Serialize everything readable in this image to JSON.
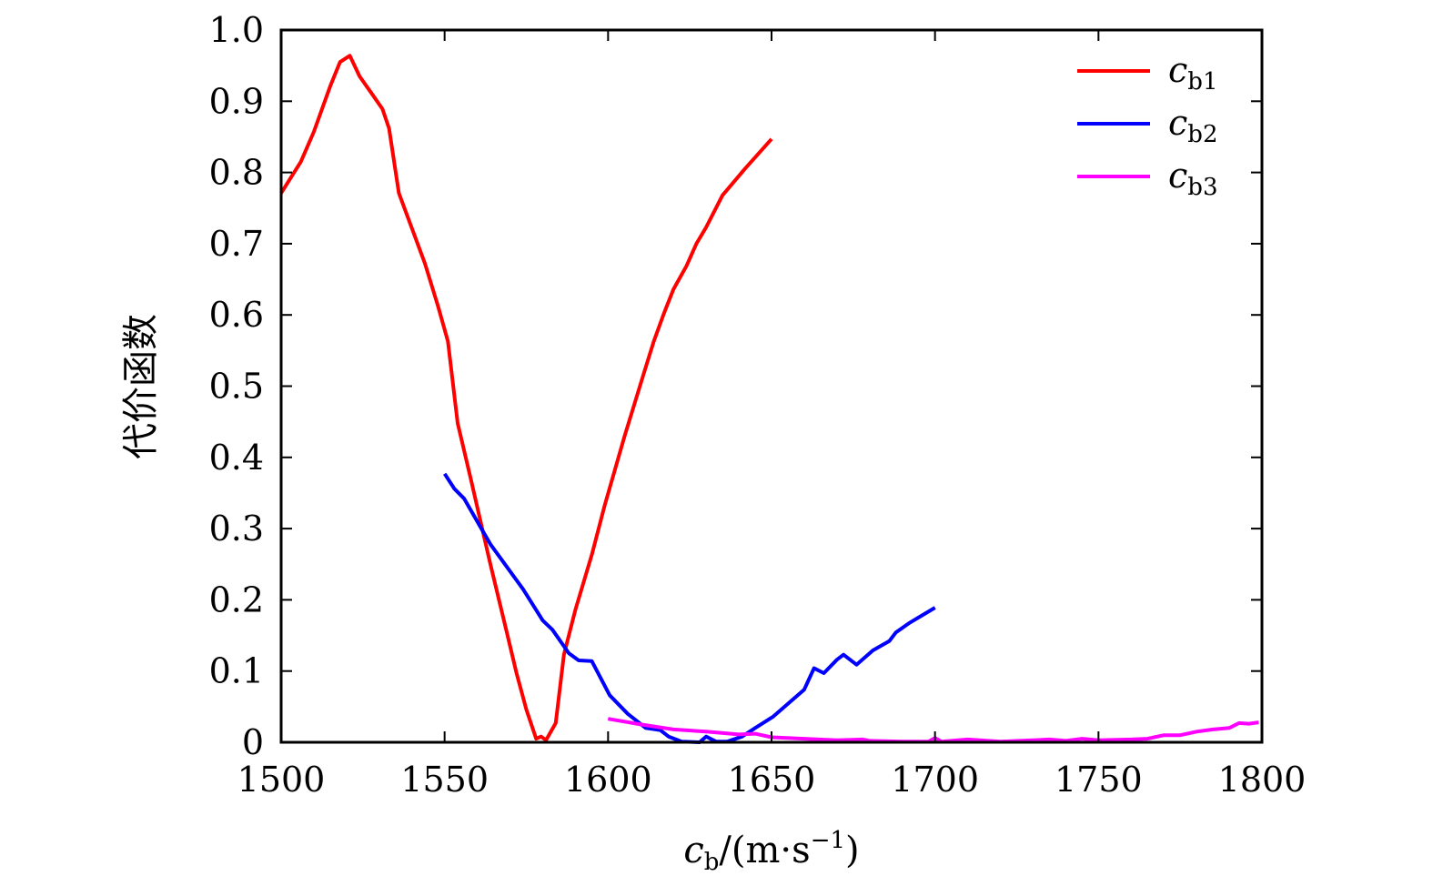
{
  "chart_data": {
    "type": "line",
    "title": "",
    "xlabel": {
      "var": "c",
      "sub": "b",
      "unit": "/(m·s",
      "sup": "−1",
      "close": ")"
    },
    "ylabel": "代价函数",
    "xlim": [
      1500,
      1800
    ],
    "ylim": [
      0,
      1.0
    ],
    "xticks": [
      1500,
      1550,
      1600,
      1650,
      1700,
      1750,
      1800
    ],
    "xtick_labels": [
      "1500",
      "1550",
      "1600",
      "1650",
      "1700",
      "1750",
      "1800"
    ],
    "yticks": [
      0,
      0.1,
      0.2,
      0.3,
      0.4,
      0.5,
      0.6,
      0.7,
      0.8,
      0.9,
      1.0
    ],
    "ytick_labels": [
      "0",
      "0.1",
      "0.2",
      "0.3",
      "0.4",
      "0.5",
      "0.6",
      "0.7",
      "0.8",
      "0.9",
      "1.0"
    ],
    "grid": false,
    "legend_position": "top-right",
    "series": [
      {
        "name": "cb1",
        "var": "c",
        "sub": "b1",
        "color": "#ff0000",
        "x": [
          1500,
          1503,
          1506,
          1510,
          1515,
          1518,
          1521,
          1524,
          1528,
          1531,
          1533,
          1536,
          1544,
          1548,
          1551,
          1554,
          1558,
          1564,
          1569,
          1572,
          1575,
          1578,
          1579.5,
          1581,
          1584,
          1586.5,
          1590,
          1595,
          1599,
          1605,
          1611,
          1614,
          1617,
          1620,
          1624,
          1627,
          1630,
          1635,
          1642,
          1650
        ],
        "y": [
          0.771,
          0.793,
          0.815,
          0.857,
          0.921,
          0.955,
          0.964,
          0.935,
          0.909,
          0.889,
          0.862,
          0.771,
          0.672,
          0.612,
          0.563,
          0.448,
          0.37,
          0.25,
          0.155,
          0.097,
          0.046,
          0.005,
          0.008,
          0.003,
          0.027,
          0.123,
          0.186,
          0.263,
          0.333,
          0.429,
          0.519,
          0.563,
          0.601,
          0.636,
          0.669,
          0.7,
          0.723,
          0.768,
          0.806,
          0.847
        ]
      },
      {
        "name": "cb2",
        "var": "c",
        "sub": "b2",
        "color": "#0000ff",
        "x": [
          1550,
          1553,
          1556,
          1561.5,
          1564,
          1574,
          1580,
          1583,
          1588,
          1591,
          1595,
          1600.5,
          1606,
          1611.5,
          1616,
          1618.5,
          1622.5,
          1628,
          1630,
          1633,
          1636.5,
          1641,
          1645,
          1650.5,
          1660,
          1663,
          1666,
          1670,
          1672,
          1676,
          1681,
          1686,
          1688,
          1692,
          1700
        ],
        "y": [
          0.377,
          0.356,
          0.342,
          0.298,
          0.278,
          0.215,
          0.171,
          0.158,
          0.125,
          0.115,
          0.114,
          0.066,
          0.04,
          0.02,
          0.017,
          0.008,
          0.001,
          0,
          0.008,
          0.001,
          0.001,
          0.008,
          0.02,
          0.036,
          0.074,
          0.104,
          0.097,
          0.116,
          0.123,
          0.109,
          0.129,
          0.142,
          0.154,
          0.167,
          0.189
        ]
      },
      {
        "name": "cb3",
        "var": "c",
        "sub": "b3",
        "color": "#ff00ff",
        "x": [
          1600,
          1610,
          1620,
          1630,
          1640,
          1645,
          1650,
          1660,
          1670,
          1678,
          1680,
          1690,
          1698,
          1700,
          1702,
          1710,
          1720,
          1730,
          1735,
          1740,
          1745,
          1750,
          1760,
          1765,
          1770,
          1775,
          1780,
          1785,
          1790,
          1793,
          1796,
          1799
        ],
        "y": [
          0.033,
          0.025,
          0.018,
          0.015,
          0.011,
          0.012,
          0.007,
          0.005,
          0.003,
          0.004,
          0.002,
          0.001,
          0.001,
          0.006,
          0.001,
          0.004,
          0.001,
          0.003,
          0.004,
          0.002,
          0.005,
          0.003,
          0.004,
          0.005,
          0.01,
          0.01,
          0.015,
          0.018,
          0.02,
          0.027,
          0.026,
          0.028
        ]
      }
    ]
  }
}
